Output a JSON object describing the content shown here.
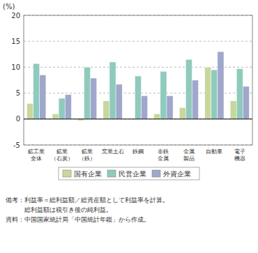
{
  "chart_data": {
    "type": "bar",
    "ylabel": "(%)",
    "categories": [
      "鉱工業\n全体",
      "鉱業\n（石炭）",
      "鉱業\n（鉄）",
      "窯業土石",
      "鉄鋼",
      "非鉄\n金属",
      "金属\n製品",
      "自動車",
      "電子\n機器"
    ],
    "series": [
      {
        "name": "国有企業",
        "color": "#c8d89c",
        "values": [
          3.0,
          1.0,
          -0.3,
          3.5,
          0.0,
          1.0,
          2.2,
          10.0,
          3.5
        ]
      },
      {
        "name": "民営企業",
        "color": "#8fcbbc",
        "values": [
          10.7,
          4.0,
          10.0,
          11.0,
          8.3,
          9.2,
          11.5,
          9.5,
          9.7
        ]
      },
      {
        "name": "外資企業",
        "color": "#9fa8cc",
        "values": [
          8.5,
          4.7,
          7.9,
          6.7,
          4.5,
          4.5,
          7.5,
          13.0,
          6.3
        ]
      }
    ],
    "ylim": [
      -5,
      20
    ],
    "yticks": [
      -5,
      0,
      5,
      10,
      15,
      20
    ],
    "grid": true,
    "legend": "bottom",
    "annotations": [
      "備考：利益率＝総利益額／総資産額として利益率を計算。",
      "　　　総利益額は税引き後の純利益。",
      "資料：中国国家統計局「中国統計年鑑」から作成。"
    ]
  }
}
